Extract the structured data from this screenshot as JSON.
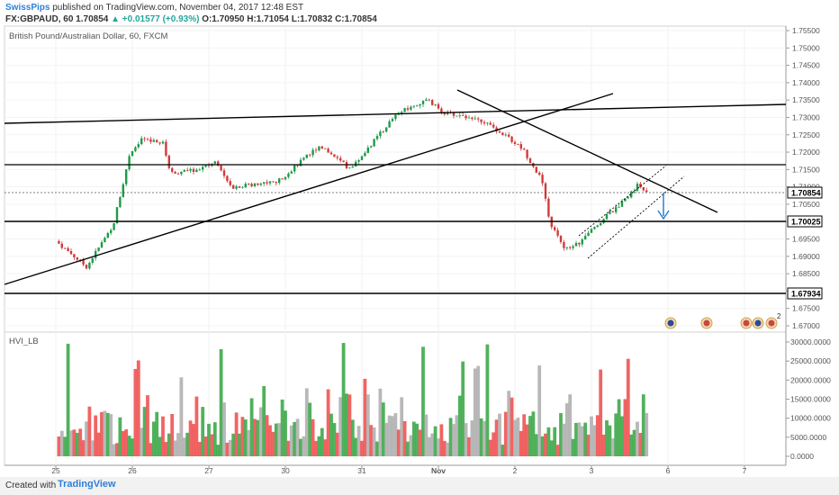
{
  "header": {
    "author": "SwissPips",
    "published": "published on TradingView.com, November 04, 2017 12:48 EST",
    "symbol": "FX:GBPAUD, 60",
    "last": "1.70854",
    "change": "+0.01577 (+0.93%)",
    "ohlc": "O:1.70950 H:1.71054 L:1.70832 C:1.70854"
  },
  "chart_title": "British Pound/Australian Dollar, 60, FXCM",
  "indicator_label": "HVI_LB",
  "price_axis_ticks": [
    "1.75500",
    "1.75000",
    "1.74500",
    "1.74000",
    "1.73500",
    "1.73000",
    "1.72500",
    "1.72000",
    "1.71500",
    "1.71000",
    "1.70500",
    "1.70000",
    "1.69500",
    "1.69000",
    "1.68500",
    "1.68000",
    "1.67500",
    "1.67000"
  ],
  "price_labels": {
    "current": "1.70854",
    "support": "1.70025",
    "lower": "1.67934"
  },
  "volume_axis_ticks": [
    "30000.0000",
    "25000.0000",
    "20000.0000",
    "15000.0000",
    "10000.0000",
    "5000.0000",
    "0.0000"
  ],
  "x_ticks": [
    "25",
    "26",
    "27",
    "30",
    "31",
    "Nov",
    "2",
    "3",
    "6",
    "7"
  ],
  "event_badge": "2",
  "footer": {
    "made": "Created with",
    "brand": "TradingView"
  },
  "colors": {
    "up": "#3ea84a",
    "down": "#f05353",
    "neutral": "#b0b0b0",
    "accent": "#2e7fd6",
    "line": "#000000"
  },
  "chart_data": {
    "type": "candlestick",
    "symbol": "GBPAUD",
    "interval": "60",
    "ylim": [
      1.668,
      1.757
    ],
    "volume_ylim": [
      0,
      32000
    ],
    "horizontal_levels": [
      1.7165,
      1.70025,
      1.67934
    ],
    "current_price": 1.70854,
    "anchors": [
      {
        "x": 0.0,
        "close": 1.6944
      },
      {
        "x": 0.4,
        "close": 1.687
      },
      {
        "x": 0.75,
        "close": 1.699
      },
      {
        "x": 0.95,
        "close": 1.718
      },
      {
        "x": 1.1,
        "close": 1.7235
      },
      {
        "x": 1.4,
        "close": 1.7225
      },
      {
        "x": 1.5,
        "close": 1.714
      },
      {
        "x": 1.9,
        "close": 1.715
      },
      {
        "x": 2.1,
        "close": 1.7175
      },
      {
        "x": 2.3,
        "close": 1.71
      },
      {
        "x": 2.9,
        "close": 1.7115
      },
      {
        "x": 3.45,
        "close": 1.722
      },
      {
        "x": 3.85,
        "close": 1.715
      },
      {
        "x": 4.45,
        "close": 1.731
      },
      {
        "x": 4.85,
        "close": 1.735
      },
      {
        "x": 5.1,
        "close": 1.731
      },
      {
        "x": 5.5,
        "close": 1.73
      },
      {
        "x": 5.8,
        "close": 1.726
      },
      {
        "x": 6.1,
        "close": 1.721
      },
      {
        "x": 6.35,
        "close": 1.712
      },
      {
        "x": 6.45,
        "close": 1.7
      },
      {
        "x": 6.65,
        "close": 1.692
      },
      {
        "x": 6.85,
        "close": 1.694
      },
      {
        "x": 7.2,
        "close": 1.702
      },
      {
        "x": 7.35,
        "close": 1.704
      },
      {
        "x": 7.6,
        "close": 1.7105
      },
      {
        "x": 7.75,
        "close": 1.7088
      }
    ]
  }
}
